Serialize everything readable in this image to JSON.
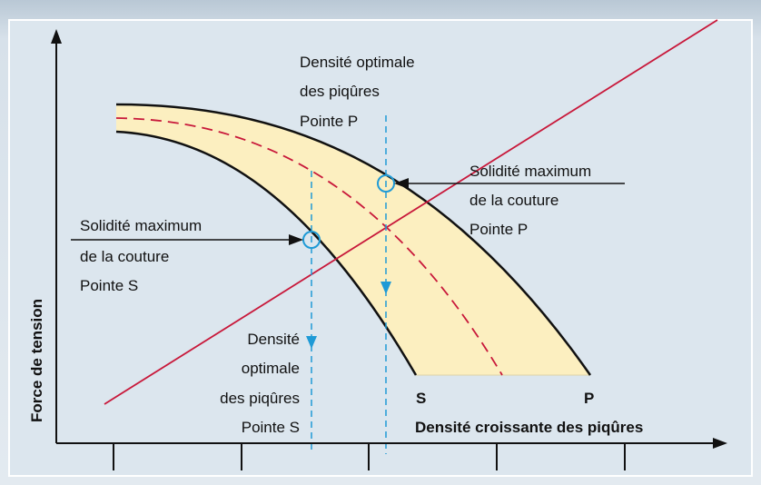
{
  "optimal_p": [
    "Densité optimale",
    "des piqûres",
    "Pointe P"
  ],
  "max_p": [
    "Solidité maximum",
    "de la couture",
    "Pointe P"
  ],
  "max_s": [
    "Solidité maximum",
    "de la couture",
    "Pointe S"
  ],
  "optimal_s": [
    "Densité",
    "optimale",
    "des piqûres",
    "Pointe S"
  ],
  "curve_labels": [
    "S",
    "P"
  ],
  "x_axis_label": "Densité croissante des piqûres",
  "y_axis_label": "Force de tension"
}
